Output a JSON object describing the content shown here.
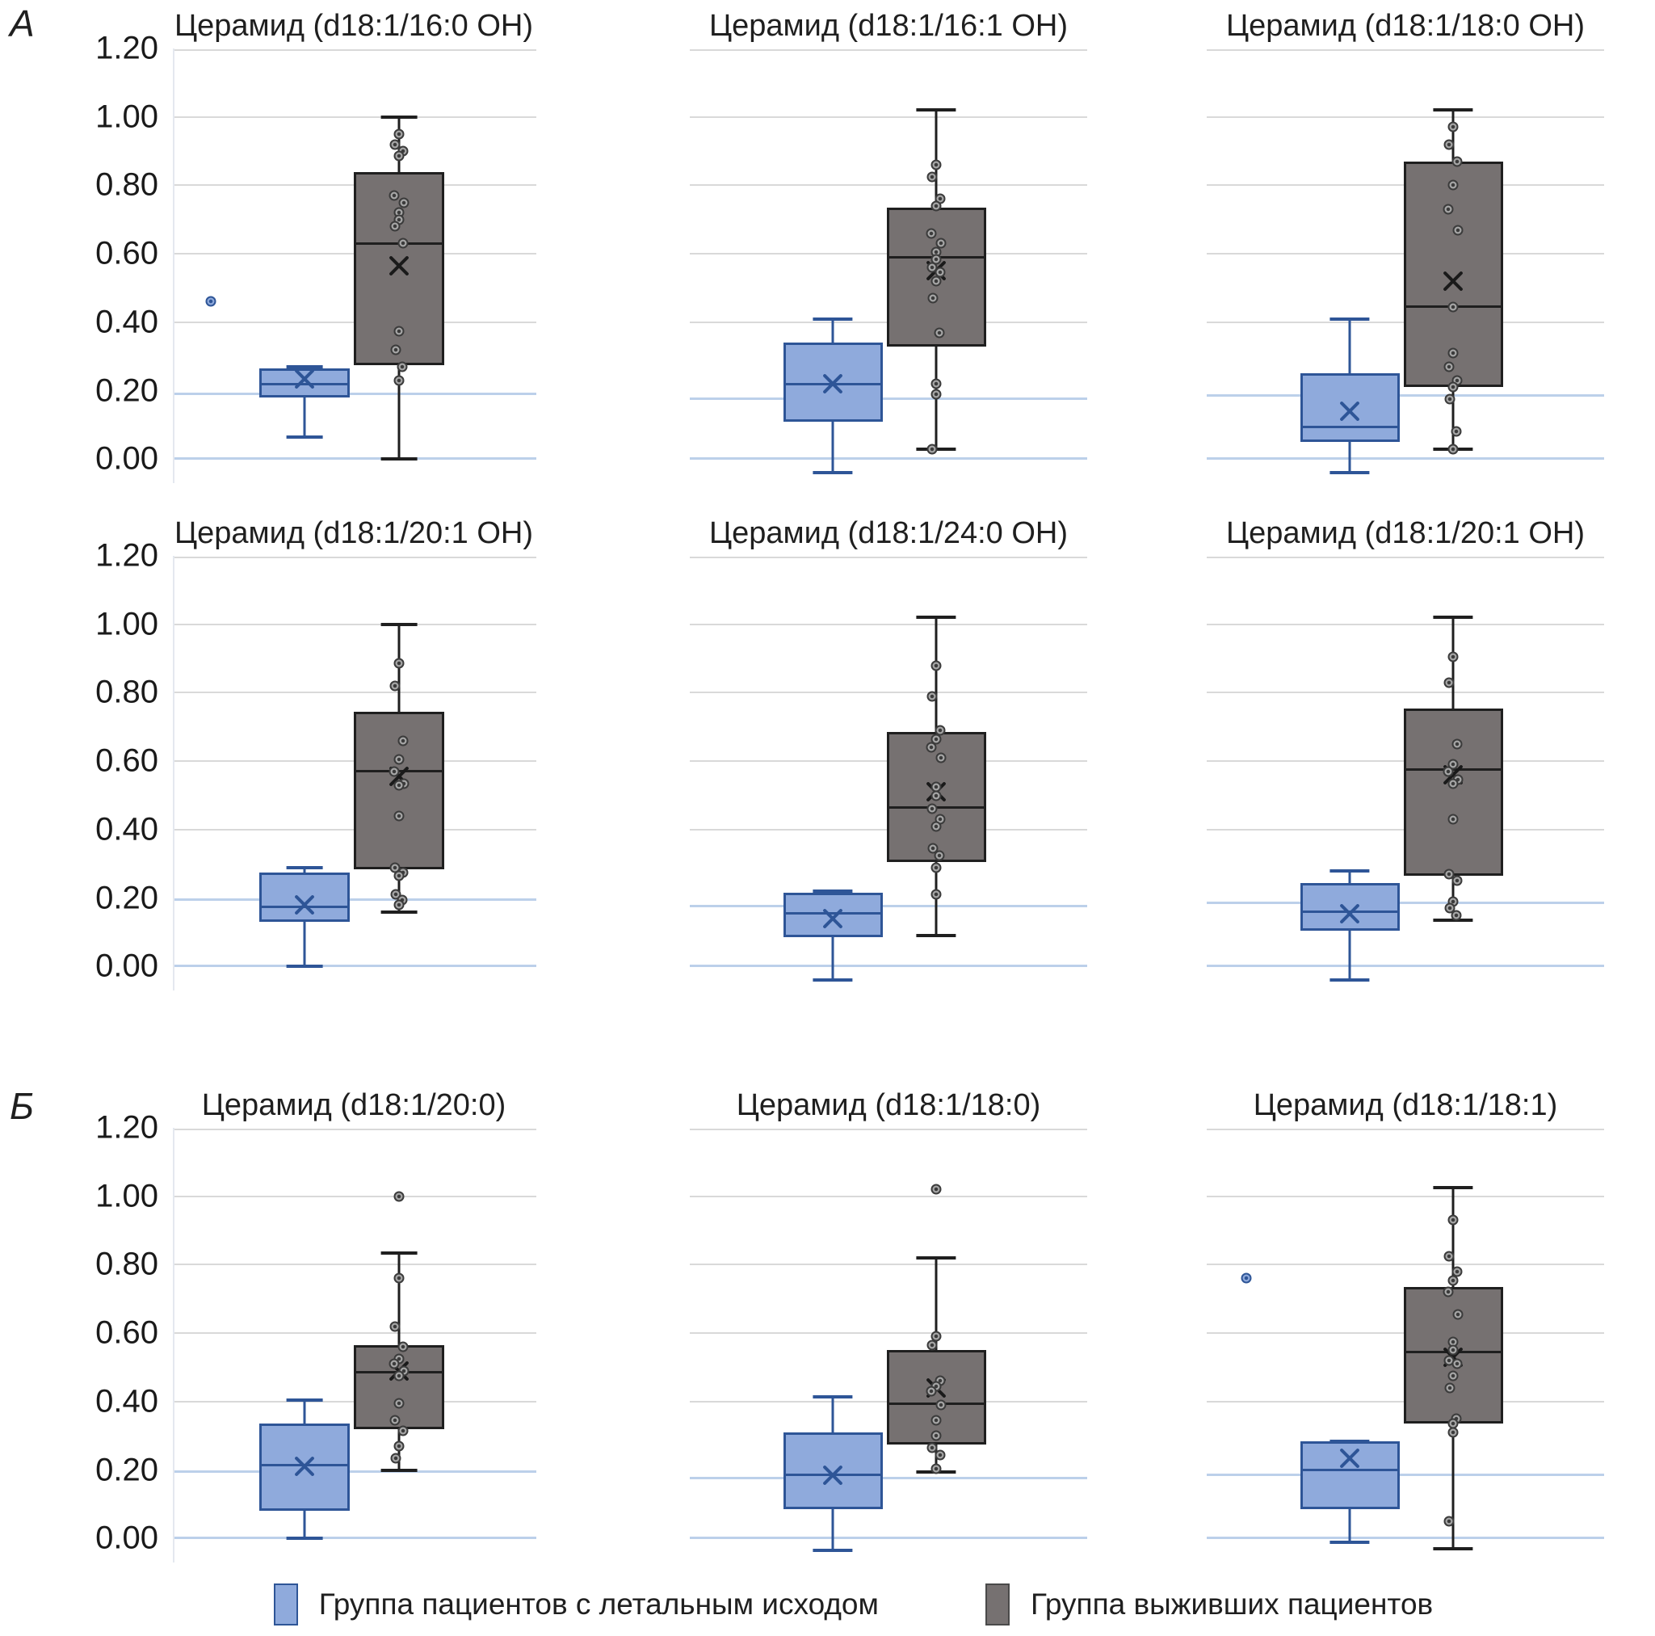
{
  "panels": {
    "a": "А",
    "b": "Б"
  },
  "y_axis": {
    "min": -0.07,
    "max": 1.2,
    "ticks": [
      {
        "label": "1.20",
        "value": 1.2
      },
      {
        "label": "1.00",
        "value": 1.0
      },
      {
        "label": "0.80",
        "value": 0.8
      },
      {
        "label": "0.60",
        "value": 0.6
      },
      {
        "label": "0.40",
        "value": 0.4
      },
      {
        "label": "0.20",
        "value": 0.2
      },
      {
        "label": "0.00",
        "value": 0.0
      }
    ],
    "gray_gridline_values": [
      1.2,
      1.0,
      0.8,
      0.6,
      0.4
    ]
  },
  "colors": {
    "gridline": "#d9d9d9",
    "zero_line": "#bcd0ea",
    "reference_line": "#bcd0ea",
    "lethal_fill": "#8faadc",
    "lethal_border": "#2e5597",
    "survivor_fill": "#767171",
    "survivor_border": "#1f1f1f",
    "point_border": "#3b3b3b",
    "point_fill": "#a6a6a6"
  },
  "legend": [
    {
      "label": "Группа пациентов с летальным исходом",
      "fill": "#8faadc",
      "border": "#2e5597"
    },
    {
      "label": "Группа выживших пациентов",
      "fill": "#767171",
      "border": "#4a4a4a"
    }
  ],
  "chart_data": [
    {
      "type": "box",
      "panel": "А",
      "title": "Церамид (d18:1/16:0 OH)",
      "reference_line": 0.19,
      "groups": [
        {
          "name": "Группа пациентов с летальным исходом",
          "whisker_low": 0.065,
          "q1": 0.18,
          "median": 0.22,
          "q3": 0.265,
          "whisker_high": 0.27,
          "mean": 0.235,
          "outliers": [
            0.46
          ],
          "points": []
        },
        {
          "name": "Группа выживших пациентов",
          "whisker_low": 0.0,
          "q1": 0.275,
          "median": 0.63,
          "q3": 0.84,
          "whisker_high": 1.0,
          "mean": 0.565,
          "outliers": [],
          "points": [
            0.95,
            0.92,
            0.9,
            0.885,
            0.77,
            0.75,
            0.72,
            0.7,
            0.68,
            0.63,
            0.375,
            0.32,
            0.27,
            0.23
          ]
        }
      ]
    },
    {
      "type": "box",
      "panel": "А",
      "title": "Церамид (d18:1/16:1 OH)",
      "reference_line": 0.175,
      "groups": [
        {
          "name": "Группа пациентов с летальным исходом",
          "whisker_low": -0.04,
          "q1": 0.11,
          "median": 0.22,
          "q3": 0.34,
          "whisker_high": 0.41,
          "mean": 0.22,
          "outliers": [],
          "points": []
        },
        {
          "name": "Группа выживших пациентов",
          "whisker_low": 0.03,
          "q1": 0.33,
          "median": 0.59,
          "q3": 0.735,
          "whisker_high": 1.02,
          "mean": 0.55,
          "outliers": [],
          "points": [
            0.86,
            0.825,
            0.76,
            0.74,
            0.66,
            0.63,
            0.605,
            0.585,
            0.56,
            0.545,
            0.52,
            0.47,
            0.37,
            0.22,
            0.19,
            0.03
          ]
        }
      ]
    },
    {
      "type": "box",
      "panel": "А",
      "title": "Церамид (d18:1/18:0 OH)",
      "reference_line": 0.185,
      "groups": [
        {
          "name": "Группа пациентов с летальным исходом",
          "whisker_low": -0.04,
          "q1": 0.05,
          "median": 0.095,
          "q3": 0.25,
          "whisker_high": 0.41,
          "mean": 0.14,
          "outliers": [],
          "points": []
        },
        {
          "name": "Группа выживших пациентов",
          "whisker_low": 0.03,
          "q1": 0.21,
          "median": 0.445,
          "q3": 0.87,
          "whisker_high": 1.02,
          "mean": 0.52,
          "outliers": [],
          "points": [
            0.97,
            0.92,
            0.87,
            0.8,
            0.73,
            0.67,
            0.445,
            0.31,
            0.27,
            0.23,
            0.21,
            0.175,
            0.08,
            0.03
          ]
        }
      ]
    },
    {
      "type": "box",
      "panel": "А",
      "title": "Церамид (d18:1/20:1 OH)",
      "reference_line": 0.195,
      "groups": [
        {
          "name": "Группа пациентов с летальным исходом",
          "whisker_low": 0.0,
          "q1": 0.13,
          "median": 0.175,
          "q3": 0.275,
          "whisker_high": 0.29,
          "mean": 0.18,
          "outliers": [],
          "points": []
        },
        {
          "name": "Группа выживших пациентов",
          "whisker_low": 0.16,
          "q1": 0.285,
          "median": 0.57,
          "q3": 0.745,
          "whisker_high": 1.0,
          "mean": 0.555,
          "outliers": [],
          "points": [
            0.885,
            0.82,
            0.66,
            0.605,
            0.57,
            0.535,
            0.53,
            0.44,
            0.29,
            0.275,
            0.265,
            0.21,
            0.195,
            0.18
          ]
        }
      ]
    },
    {
      "type": "box",
      "panel": "А",
      "title": "Церамид (d18:1/24:0 OH)",
      "reference_line": 0.175,
      "groups": [
        {
          "name": "Группа пациентов с летальным исходом",
          "whisker_low": -0.04,
          "q1": 0.085,
          "median": 0.155,
          "q3": 0.215,
          "whisker_high": 0.22,
          "mean": 0.14,
          "outliers": [],
          "points": []
        },
        {
          "name": "Группа выживших пациентов",
          "whisker_low": 0.09,
          "q1": 0.305,
          "median": 0.465,
          "q3": 0.685,
          "whisker_high": 1.02,
          "mean": 0.51,
          "outliers": [],
          "points": [
            0.88,
            0.79,
            0.69,
            0.665,
            0.64,
            0.61,
            0.525,
            0.5,
            0.46,
            0.43,
            0.41,
            0.345,
            0.325,
            0.29,
            0.21
          ]
        }
      ]
    },
    {
      "type": "box",
      "panel": "А",
      "title": "Церамид (d18:1/20:1 OH)",
      "reference_line": 0.185,
      "groups": [
        {
          "name": "Группа пациентов с летальным исходом",
          "whisker_low": -0.04,
          "q1": 0.105,
          "median": 0.16,
          "q3": 0.245,
          "whisker_high": 0.28,
          "mean": 0.155,
          "outliers": [],
          "points": []
        },
        {
          "name": "Группа выживших пациентов",
          "whisker_low": 0.135,
          "q1": 0.265,
          "median": 0.575,
          "q3": 0.755,
          "whisker_high": 1.02,
          "mean": 0.56,
          "outliers": [],
          "points": [
            0.905,
            0.83,
            0.65,
            0.59,
            0.57,
            0.545,
            0.535,
            0.43,
            0.27,
            0.25,
            0.19,
            0.17,
            0.15
          ]
        }
      ]
    },
    {
      "type": "box",
      "panel": "Б",
      "title": "Церамид (d18:1/20:0)",
      "reference_line": 0.195,
      "groups": [
        {
          "name": "Группа пациентов с летальным исходом",
          "whisker_low": 0.0,
          "q1": 0.08,
          "median": 0.215,
          "q3": 0.335,
          "whisker_high": 0.405,
          "mean": 0.21,
          "outliers": [],
          "points": []
        },
        {
          "name": "Группа выживших пациентов",
          "whisker_low": 0.2,
          "q1": 0.32,
          "median": 0.485,
          "q3": 0.565,
          "whisker_high": 0.835,
          "mean": 0.49,
          "outliers": [
            1.0
          ],
          "points": [
            0.76,
            0.62,
            0.56,
            0.525,
            0.51,
            0.49,
            0.475,
            0.395,
            0.345,
            0.315,
            0.27,
            0.235
          ]
        }
      ]
    },
    {
      "type": "box",
      "panel": "Б",
      "title": "Церамид (d18:1/18:0)",
      "reference_line": 0.175,
      "groups": [
        {
          "name": "Группа пациентов с летальным исходом",
          "whisker_low": -0.035,
          "q1": 0.085,
          "median": 0.185,
          "q3": 0.31,
          "whisker_high": 0.415,
          "mean": 0.185,
          "outliers": [],
          "points": []
        },
        {
          "name": "Группа выживших пациентов",
          "whisker_low": 0.195,
          "q1": 0.275,
          "median": 0.395,
          "q3": 0.55,
          "whisker_high": 0.82,
          "mean": 0.44,
          "outliers": [
            1.02
          ],
          "points": [
            0.59,
            0.565,
            0.46,
            0.445,
            0.43,
            0.39,
            0.345,
            0.3,
            0.265,
            0.245,
            0.205
          ]
        }
      ]
    },
    {
      "type": "box",
      "panel": "Б",
      "title": "Церамид (d18:1/18:1)",
      "reference_line": 0.185,
      "groups": [
        {
          "name": "Группа пациентов с летальным исходом",
          "whisker_low": -0.01,
          "q1": 0.085,
          "median": 0.2,
          "q3": 0.285,
          "whisker_high": 0.285,
          "mean": 0.235,
          "outliers": [
            0.76
          ],
          "points": []
        },
        {
          "name": "Группа выживших пациентов",
          "whisker_low": -0.03,
          "q1": 0.335,
          "median": 0.545,
          "q3": 0.735,
          "whisker_high": 1.025,
          "mean": 0.53,
          "outliers": [],
          "points": [
            0.93,
            0.825,
            0.78,
            0.755,
            0.72,
            0.655,
            0.575,
            0.55,
            0.52,
            0.51,
            0.475,
            0.44,
            0.35,
            0.335,
            0.31,
            0.05
          ]
        }
      ]
    }
  ]
}
